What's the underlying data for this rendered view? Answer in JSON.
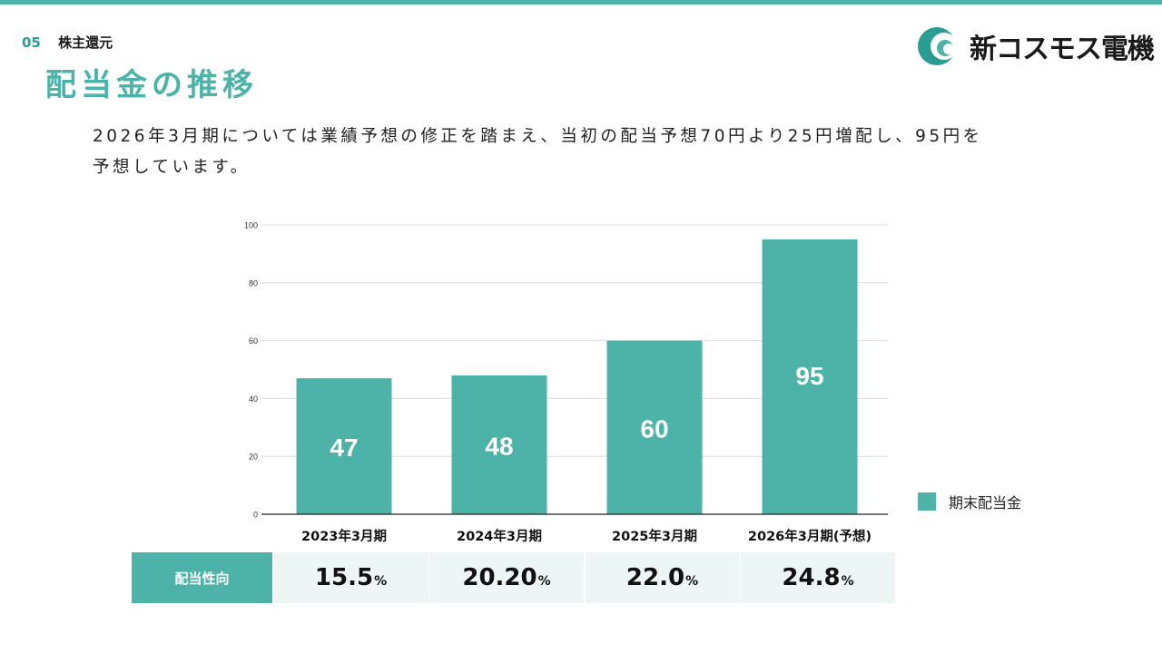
{
  "header": {
    "section_number": "05",
    "section_name": "株主還元",
    "title": "配当金の推移",
    "company": "新コスモス電機"
  },
  "lead": {
    "line1": "2026年3月期については業績予想の修正を踏まえ、当初の配当予想70円より25円増配し、95円を",
    "line2": "予想しています。"
  },
  "colors": {
    "accent": "#4db3a8",
    "accent_dark": "#2a9d93",
    "table_bg": "#edf6f5"
  },
  "chart_data": {
    "type": "bar",
    "categories": [
      "2023年3月期",
      "2024年3月期",
      "2025年3月期",
      "2026年3月期(予想)"
    ],
    "series": [
      {
        "name": "期末配当金",
        "values": [
          47,
          48,
          60,
          95
        ]
      }
    ],
    "ylim": [
      0,
      100
    ],
    "yticks": [
      0,
      20,
      40,
      60,
      80,
      100
    ],
    "grid": true,
    "legend_position": "right"
  },
  "payout": {
    "label": "配当性向",
    "values": [
      "15.5",
      "20.20",
      "22.0",
      "24.8"
    ],
    "unit": "%"
  }
}
